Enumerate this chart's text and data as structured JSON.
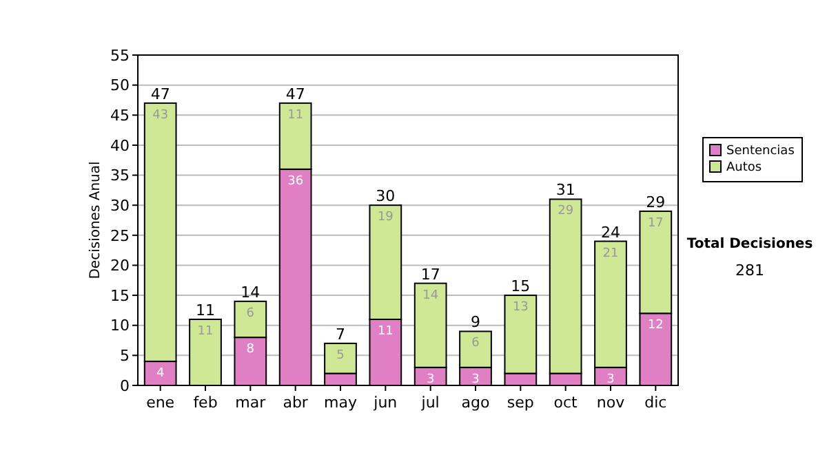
{
  "chart_data": {
    "type": "bar",
    "stacked": true,
    "ylabel": "Decisiones Anual",
    "categories": [
      "ene",
      "feb",
      "mar",
      "abr",
      "may",
      "jun",
      "jul",
      "ago",
      "sep",
      "oct",
      "nov",
      "dic"
    ],
    "series": [
      {
        "name": "Sentencias",
        "color": "#e07fc4",
        "values": [
          4,
          0,
          8,
          36,
          2,
          11,
          3,
          3,
          2,
          2,
          3,
          12
        ],
        "value_labels": [
          "4",
          null,
          "8",
          "36",
          null,
          "11",
          "3",
          "3",
          null,
          null,
          "3",
          "12"
        ]
      },
      {
        "name": "Autos",
        "color": "#cfe896",
        "values": [
          43,
          11,
          6,
          11,
          5,
          19,
          14,
          6,
          13,
          29,
          21,
          17
        ],
        "value_labels": [
          "43",
          "11",
          "6",
          "11",
          "5",
          "19",
          "14",
          "6",
          "13",
          "29",
          "21",
          "17"
        ]
      }
    ],
    "totals": [
      "47",
      "11",
      "14",
      "47",
      "7",
      "30",
      "17",
      "9",
      "15",
      "31",
      "24",
      "29"
    ],
    "ylim": [
      0,
      55
    ],
    "yticks": [
      0,
      5,
      10,
      15,
      20,
      25,
      30,
      35,
      40,
      45,
      50,
      55
    ],
    "grid": "y",
    "legend": "right",
    "annotations": [
      "Total Decisiones",
      "281"
    ]
  }
}
